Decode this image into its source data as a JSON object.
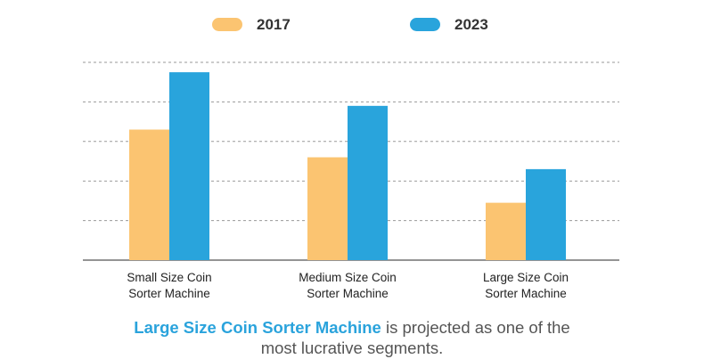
{
  "chart_data": {
    "type": "bar",
    "categories": [
      [
        "Small Size Coin",
        "Sorter Machine"
      ],
      [
        "Medium Size Coin",
        "Sorter Machine"
      ],
      [
        "Large Size Coin",
        "Sorter Machine"
      ]
    ],
    "series": [
      {
        "name": "2017",
        "color": "#fbc471",
        "values": [
          3.3,
          2.6,
          1.45
        ]
      },
      {
        "name": "2023",
        "color": "#29a4dc",
        "values": [
          4.75,
          3.9,
          2.3
        ]
      }
    ],
    "title": "",
    "xlabel": "",
    "ylabel": "",
    "ylim": [
      0,
      5
    ],
    "grid": true,
    "legend_position": "top"
  },
  "caption": {
    "highlight": "Large Size Coin Sorter Machine",
    "rest_line1": " is projected as one of the",
    "line2": "most lucrative segments."
  }
}
